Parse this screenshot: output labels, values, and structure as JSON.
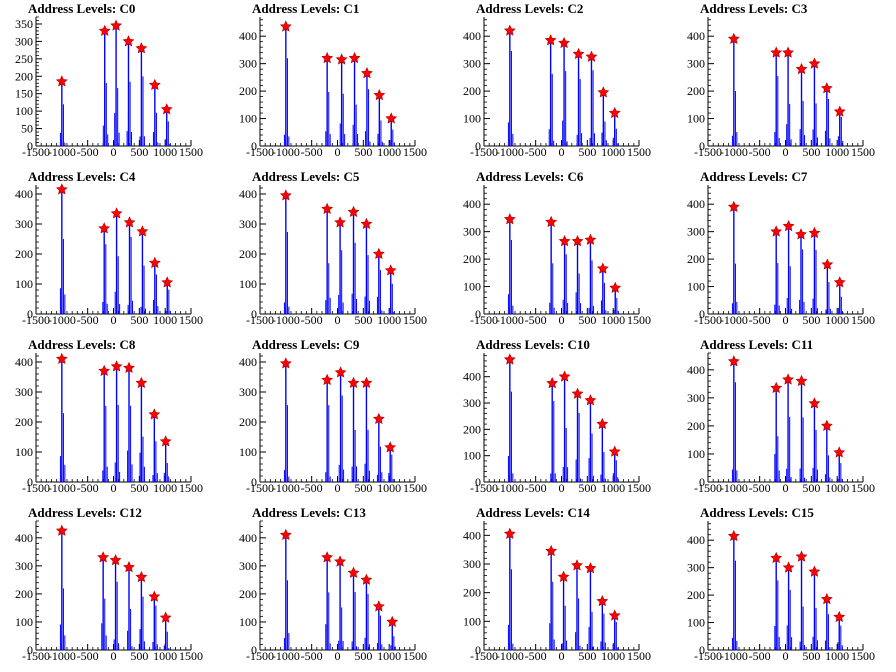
{
  "figure": {
    "panel_title_prefix": "Address Levels: "
  },
  "chart_data": {
    "type": "multi-panel histogram with peak markers",
    "xlim": [
      -1500,
      1500
    ],
    "x_ticks": [
      -1500,
      -1000,
      -500,
      0,
      500,
      1000,
      1500
    ],
    "x_tick_labels": [
      "-1500",
      "-1000",
      "-500",
      "0",
      "500",
      "1000",
      "1500"
    ],
    "bar_color": "#0000ff",
    "marker_color": "#ff0000",
    "marker_shape": "star",
    "grid": false,
    "panels": [
      {
        "title": "Address Levels: C0",
        "ylim": [
          0,
          370
        ],
        "y_ticks": [
          0,
          50,
          100,
          150,
          200,
          250,
          300,
          350
        ],
        "peaks": [
          {
            "x": -1000,
            "y": 185
          },
          {
            "x": -170,
            "y": 330
          },
          {
            "x": 50,
            "y": 345
          },
          {
            "x": 290,
            "y": 300
          },
          {
            "x": 540,
            "y": 280
          },
          {
            "x": 800,
            "y": 175
          },
          {
            "x": 1030,
            "y": 105
          }
        ]
      },
      {
        "title": "Address Levels: C1",
        "ylim": [
          0,
          470
        ],
        "y_ticks": [
          0,
          100,
          200,
          300,
          400
        ],
        "peaks": [
          {
            "x": -1000,
            "y": 435
          },
          {
            "x": -200,
            "y": 320
          },
          {
            "x": 80,
            "y": 315
          },
          {
            "x": 330,
            "y": 320
          },
          {
            "x": 570,
            "y": 265
          },
          {
            "x": 810,
            "y": 185
          },
          {
            "x": 1040,
            "y": 100
          }
        ]
      },
      {
        "title": "Address Levels: C2",
        "ylim": [
          0,
          470
        ],
        "y_ticks": [
          0,
          100,
          200,
          300,
          400
        ],
        "peaks": [
          {
            "x": -1000,
            "y": 420
          },
          {
            "x": -210,
            "y": 385
          },
          {
            "x": 50,
            "y": 375
          },
          {
            "x": 330,
            "y": 335
          },
          {
            "x": 580,
            "y": 325
          },
          {
            "x": 810,
            "y": 195
          },
          {
            "x": 1030,
            "y": 120
          }
        ]
      },
      {
        "title": "Address Levels: C3",
        "ylim": [
          0,
          470
        ],
        "y_ticks": [
          0,
          100,
          200,
          300,
          400
        ],
        "peaks": [
          {
            "x": -1000,
            "y": 390
          },
          {
            "x": -180,
            "y": 340
          },
          {
            "x": 50,
            "y": 340
          },
          {
            "x": 310,
            "y": 280
          },
          {
            "x": 560,
            "y": 300
          },
          {
            "x": 800,
            "y": 210
          },
          {
            "x": 1050,
            "y": 125
          }
        ]
      },
      {
        "title": "Address Levels: C4",
        "ylim": [
          0,
          430
        ],
        "y_ticks": [
          0,
          100,
          200,
          300,
          400
        ],
        "peaks": [
          {
            "x": -1000,
            "y": 415
          },
          {
            "x": -180,
            "y": 285
          },
          {
            "x": 60,
            "y": 335
          },
          {
            "x": 310,
            "y": 305
          },
          {
            "x": 560,
            "y": 275
          },
          {
            "x": 800,
            "y": 170
          },
          {
            "x": 1040,
            "y": 105
          }
        ]
      },
      {
        "title": "Address Levels: C5",
        "ylim": [
          0,
          430
        ],
        "y_ticks": [
          0,
          100,
          200,
          300,
          400
        ],
        "peaks": [
          {
            "x": -1000,
            "y": 395
          },
          {
            "x": -200,
            "y": 350
          },
          {
            "x": 50,
            "y": 305
          },
          {
            "x": 310,
            "y": 340
          },
          {
            "x": 560,
            "y": 300
          },
          {
            "x": 800,
            "y": 200
          },
          {
            "x": 1030,
            "y": 145
          }
        ]
      },
      {
        "title": "Address Levels: C6",
        "ylim": [
          0,
          470
        ],
        "y_ticks": [
          0,
          100,
          200,
          300,
          400
        ],
        "peaks": [
          {
            "x": -1000,
            "y": 345
          },
          {
            "x": -200,
            "y": 335
          },
          {
            "x": 60,
            "y": 265
          },
          {
            "x": 310,
            "y": 265
          },
          {
            "x": 560,
            "y": 270
          },
          {
            "x": 800,
            "y": 165
          },
          {
            "x": 1040,
            "y": 95
          }
        ]
      },
      {
        "title": "Address Levels: C7",
        "ylim": [
          0,
          470
        ],
        "y_ticks": [
          0,
          100,
          200,
          300,
          400
        ],
        "peaks": [
          {
            "x": -1000,
            "y": 390
          },
          {
            "x": -180,
            "y": 300
          },
          {
            "x": 60,
            "y": 320
          },
          {
            "x": 300,
            "y": 290
          },
          {
            "x": 560,
            "y": 295
          },
          {
            "x": 810,
            "y": 180
          },
          {
            "x": 1050,
            "y": 115
          }
        ]
      },
      {
        "title": "Address Levels: C8",
        "ylim": [
          0,
          430
        ],
        "y_ticks": [
          0,
          100,
          200,
          300,
          400
        ],
        "peaks": [
          {
            "x": -1000,
            "y": 410
          },
          {
            "x": -180,
            "y": 370
          },
          {
            "x": 60,
            "y": 385
          },
          {
            "x": 300,
            "y": 380
          },
          {
            "x": 540,
            "y": 330
          },
          {
            "x": 790,
            "y": 225
          },
          {
            "x": 1010,
            "y": 135
          }
        ]
      },
      {
        "title": "Address Levels: C9",
        "ylim": [
          0,
          430
        ],
        "y_ticks": [
          0,
          100,
          200,
          300,
          400
        ],
        "peaks": [
          {
            "x": -1000,
            "y": 395
          },
          {
            "x": -200,
            "y": 340
          },
          {
            "x": 60,
            "y": 365
          },
          {
            "x": 310,
            "y": 330
          },
          {
            "x": 560,
            "y": 330
          },
          {
            "x": 800,
            "y": 210
          },
          {
            "x": 1020,
            "y": 115
          }
        ]
      },
      {
        "title": "Address Levels: C10",
        "ylim": [
          0,
          490
        ],
        "y_ticks": [
          0,
          100,
          200,
          300,
          400
        ],
        "peaks": [
          {
            "x": -1000,
            "y": 465
          },
          {
            "x": -180,
            "y": 375
          },
          {
            "x": 60,
            "y": 400
          },
          {
            "x": 310,
            "y": 335
          },
          {
            "x": 560,
            "y": 310
          },
          {
            "x": 790,
            "y": 220
          },
          {
            "x": 1030,
            "y": 115
          }
        ]
      },
      {
        "title": "Address Levels: C11",
        "ylim": [
          0,
          460
        ],
        "y_ticks": [
          0,
          100,
          200,
          300,
          400
        ],
        "peaks": [
          {
            "x": -1000,
            "y": 430
          },
          {
            "x": -180,
            "y": 335
          },
          {
            "x": 50,
            "y": 365
          },
          {
            "x": 310,
            "y": 360
          },
          {
            "x": 560,
            "y": 280
          },
          {
            "x": 800,
            "y": 200
          },
          {
            "x": 1040,
            "y": 105
          }
        ]
      },
      {
        "title": "Address Levels: C12",
        "ylim": [
          0,
          460
        ],
        "y_ticks": [
          0,
          100,
          200,
          300,
          400
        ],
        "peaks": [
          {
            "x": -1000,
            "y": 425
          },
          {
            "x": -200,
            "y": 330
          },
          {
            "x": 40,
            "y": 320
          },
          {
            "x": 300,
            "y": 295
          },
          {
            "x": 540,
            "y": 260
          },
          {
            "x": 790,
            "y": 190
          },
          {
            "x": 1010,
            "y": 115
          }
        ]
      },
      {
        "title": "Address Levels: C13",
        "ylim": [
          0,
          460
        ],
        "y_ticks": [
          0,
          100,
          200,
          300,
          400
        ],
        "peaks": [
          {
            "x": -1000,
            "y": 410
          },
          {
            "x": -200,
            "y": 330
          },
          {
            "x": 50,
            "y": 315
          },
          {
            "x": 310,
            "y": 275
          },
          {
            "x": 560,
            "y": 250
          },
          {
            "x": 800,
            "y": 155
          },
          {
            "x": 1060,
            "y": 100
          }
        ]
      },
      {
        "title": "Address Levels: C14",
        "ylim": [
          0,
          450
        ],
        "y_ticks": [
          0,
          100,
          200,
          300,
          400
        ],
        "peaks": [
          {
            "x": -1000,
            "y": 405
          },
          {
            "x": -200,
            "y": 345
          },
          {
            "x": 40,
            "y": 255
          },
          {
            "x": 300,
            "y": 295
          },
          {
            "x": 560,
            "y": 285
          },
          {
            "x": 790,
            "y": 170
          },
          {
            "x": 1030,
            "y": 120
          }
        ]
      },
      {
        "title": "Address Levels: C15",
        "ylim": [
          0,
          470
        ],
        "y_ticks": [
          0,
          100,
          200,
          300,
          400
        ],
        "peaks": [
          {
            "x": -1000,
            "y": 415
          },
          {
            "x": -180,
            "y": 335
          },
          {
            "x": 60,
            "y": 300
          },
          {
            "x": 310,
            "y": 340
          },
          {
            "x": 560,
            "y": 285
          },
          {
            "x": 800,
            "y": 185
          },
          {
            "x": 1040,
            "y": 120
          }
        ]
      }
    ]
  }
}
